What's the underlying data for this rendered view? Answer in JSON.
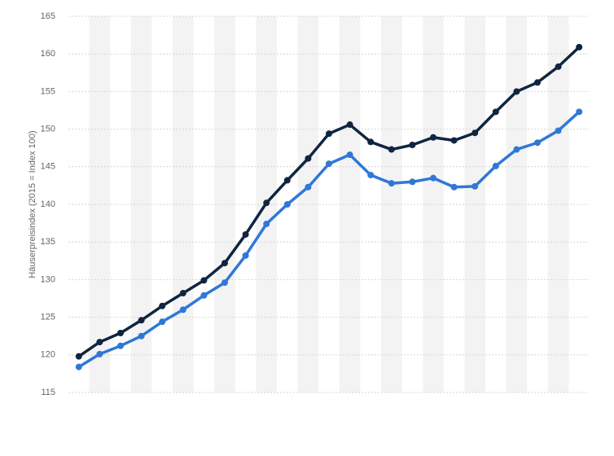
{
  "chart_data": {
    "type": "line",
    "y_label": "Häuserpreisindex (2015 = Index 100)",
    "categories": [
      null,
      null,
      null,
      null,
      null,
      null,
      null,
      null,
      null,
      null,
      null,
      null,
      null,
      null,
      null,
      null,
      null,
      null,
      null,
      null,
      null,
      null,
      null,
      null,
      null
    ],
    "series": [
      {
        "color": "#0f2540",
        "values": [
          119.8,
          121.7,
          122.9,
          124.6,
          126.5,
          128.2,
          129.9,
          132.2,
          136.0,
          140.2,
          143.2,
          146.1,
          149.4,
          150.6,
          148.3,
          147.3,
          147.9,
          148.9,
          148.5,
          149.5,
          152.3,
          155.0,
          156.2,
          158.3,
          160.9
        ]
      },
      {
        "color": "#2f78d6",
        "values": [
          118.4,
          120.1,
          121.2,
          122.5,
          124.4,
          126.0,
          127.9,
          129.6,
          133.2,
          137.4,
          140.0,
          142.3,
          145.4,
          146.6,
          143.9,
          142.8,
          143.0,
          143.5,
          142.3,
          142.4,
          145.1,
          147.3,
          148.2,
          149.8,
          152.3
        ]
      }
    ],
    "ylim": [
      115,
      165
    ],
    "yticks": [
      115,
      120,
      125,
      130,
      135,
      140,
      145,
      150,
      155,
      160,
      165
    ],
    "grid": true
  }
}
